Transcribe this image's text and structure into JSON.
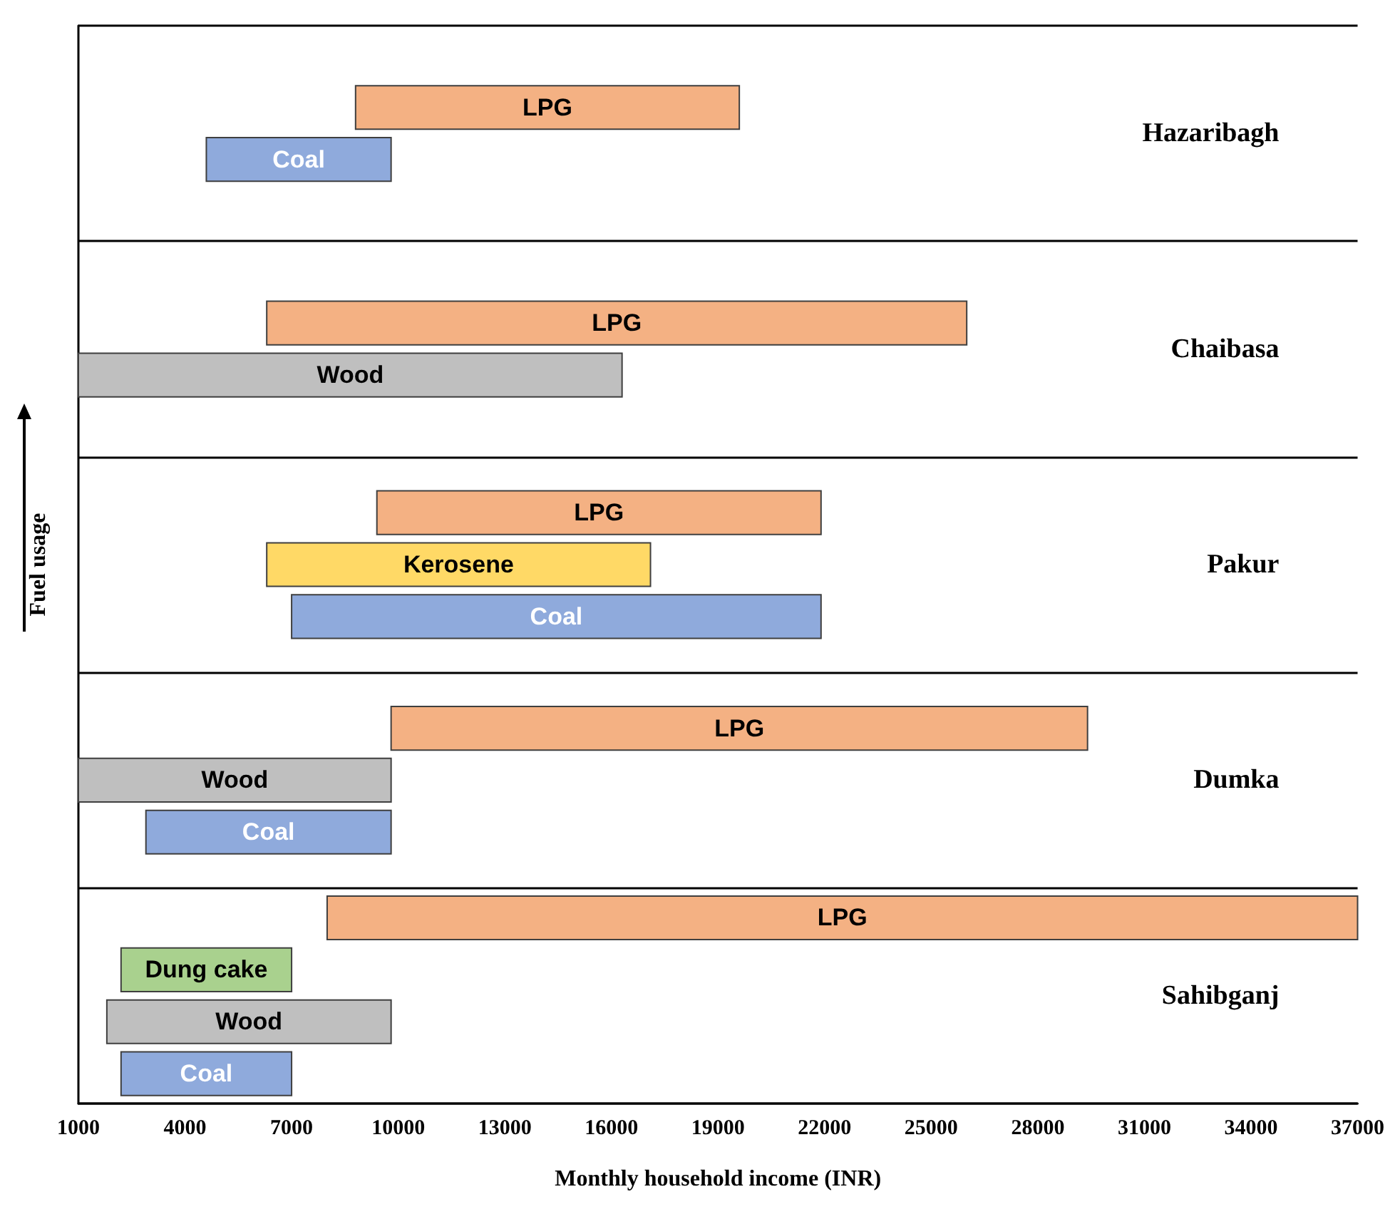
{
  "chart_data": {
    "type": "bar",
    "orientation": "horizontal",
    "ylabel": "Fuel usage",
    "xlabel": "Monthly household income (INR)",
    "grid": "y",
    "categories": [
      "Hazaribagh",
      "Chaibasa",
      "Pakur",
      "Dumka",
      "Sahibganj"
    ],
    "series": [
      {
        "name": "LPG",
        "color": "#f4b183",
        "values": [
          10800,
          19700,
          12500,
          19600,
          29000
        ],
        "base": [
          8800,
          6300,
          9400,
          9800,
          8000
        ]
      },
      {
        "name": "Kerosene",
        "color": "#ffd966",
        "values": [
          null,
          null,
          10800,
          null,
          null
        ],
        "base": [
          null,
          null,
          6300,
          null,
          null
        ]
      },
      {
        "name": "Dung cake",
        "color": "#a9d18e",
        "values": [
          null,
          null,
          null,
          null,
          4800
        ],
        "base": [
          null,
          null,
          null,
          null,
          2200
        ]
      },
      {
        "name": "Wood",
        "color": "#bfbfbf",
        "values": [
          null,
          15300,
          null,
          8800,
          8000
        ],
        "base": [
          null,
          1000,
          null,
          1000,
          1800
        ]
      },
      {
        "name": "Coal",
        "color": "#8faadc",
        "values": [
          5200,
          null,
          14900,
          6900,
          4800
        ],
        "base": [
          4600,
          null,
          7000,
          2900,
          2200
        ]
      }
    ],
    "xlim": [
      1000,
      37000
    ],
    "xticks": [
      1000,
      4000,
      7000,
      10000,
      13000,
      16000,
      19000,
      22000,
      25000,
      28000,
      31000,
      34000,
      37000
    ]
  }
}
